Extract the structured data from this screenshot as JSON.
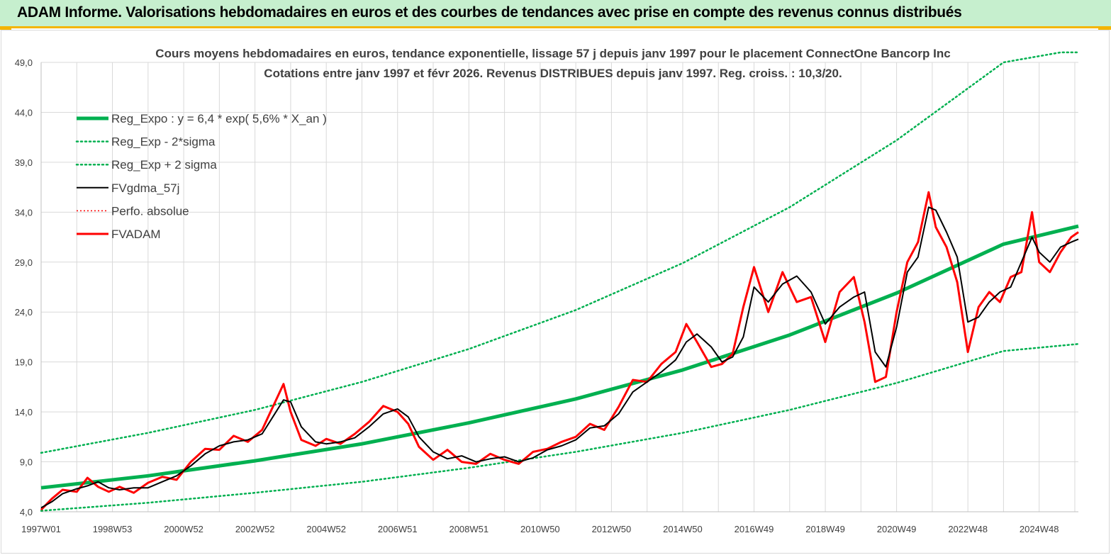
{
  "header": {
    "title": "ADAM Informe. Valorisations hebdomadaires en euros et des courbes de tendances avec prise en compte des revenus connus distribués"
  },
  "colors": {
    "header_bg": "#c6efce",
    "header_accent": "#f4b400",
    "reg_expo": "#00b050",
    "fvgdma": "#000000",
    "fvadam": "#ff0000",
    "perfo": "#ff0000",
    "grid": "#d9d9d9"
  },
  "chart_data": {
    "type": "line",
    "title_line1": "Cours moyens hebdomadaires en euros, tendance exponentielle, lissage 57 j depuis janv 1997  pour le placement ConnectOne Bancorp Inc",
    "title_line2": "Cotations entre janv 1997 et févr  2026. Revenus DISTRIBUES depuis janv 1997. Reg. croiss. : 10,3/20.",
    "xlabel": "",
    "ylabel": "",
    "ylim": [
      4.0,
      49.0
    ],
    "xlim": [
      1997.0,
      2026.1
    ],
    "y_ticks": [
      "4,0",
      "9,0",
      "14,0",
      "19,0",
      "24,0",
      "29,0",
      "34,0",
      "39,0",
      "44,0",
      "49,0"
    ],
    "x_ticks": [
      {
        "label": "1997W01",
        "x": 1997.0
      },
      {
        "label": "1998W53",
        "x": 1999.0
      },
      {
        "label": "2000W52",
        "x": 2001.0
      },
      {
        "label": "2002W52",
        "x": 2003.0
      },
      {
        "label": "2004W52",
        "x": 2005.0
      },
      {
        "label": "2006W51",
        "x": 2007.0
      },
      {
        "label": "2008W51",
        "x": 2009.0
      },
      {
        "label": "2010W50",
        "x": 2011.0
      },
      {
        "label": "2012W50",
        "x": 2013.0
      },
      {
        "label": "2014W50",
        "x": 2015.0
      },
      {
        "label": "2016W49",
        "x": 2017.0
      },
      {
        "label": "2018W49",
        "x": 2019.0
      },
      {
        "label": "2020W49",
        "x": 2021.0
      },
      {
        "label": "2022W48",
        "x": 2023.0
      },
      {
        "label": "2024W48",
        "x": 2025.0
      }
    ],
    "grid": true,
    "legend_position": "top-left",
    "legend": [
      {
        "label": "Reg_Expo : y = 6,4 * exp( 5,6% *  X_an )",
        "style": "solid-thick",
        "color": "#00b050"
      },
      {
        "label": "Reg_Exp - 2*sigma",
        "style": "dotted",
        "color": "#00b050"
      },
      {
        "label": "Reg_Exp + 2 sigma",
        "style": "dotted",
        "color": "#00b050"
      },
      {
        "label": "FVgdma_57j",
        "style": "solid",
        "color": "#000000"
      },
      {
        "label": "Perfo. absolue",
        "style": "dotted-thin",
        "color": "#ff0000"
      },
      {
        "label": "FVADAM",
        "style": "solid",
        "color": "#ff0000"
      }
    ],
    "series": [
      {
        "name": "Reg_Expo : y = 6,4 * exp( 5,6% *  X_an )",
        "x": [
          1997.0,
          2000.0,
          2003.0,
          2006.0,
          2009.0,
          2012.0,
          2015.0,
          2018.0,
          2021.0,
          2024.0,
          2026.1
        ],
        "values": [
          6.4,
          7.6,
          9.1,
          10.8,
          12.9,
          15.3,
          18.2,
          21.7,
          25.9,
          30.8,
          32.6
        ]
      },
      {
        "name": "Reg_Exp - 2*sigma",
        "x": [
          1997.0,
          2000.0,
          2003.0,
          2006.0,
          2009.0,
          2012.0,
          2015.0,
          2018.0,
          2021.0,
          2024.0,
          2026.1
        ],
        "values": [
          4.1,
          4.9,
          5.9,
          7.0,
          8.4,
          10.0,
          11.9,
          14.2,
          16.9,
          20.1,
          20.8
        ]
      },
      {
        "name": "Reg_Exp + 2 sigma",
        "x": [
          1997.0,
          2000.0,
          2003.0,
          2006.0,
          2009.0,
          2012.0,
          2015.0,
          2018.0,
          2021.0,
          2024.0,
          2025.6,
          2026.1
        ],
        "values": [
          9.9,
          11.9,
          14.2,
          17.0,
          20.3,
          24.2,
          28.9,
          34.5,
          41.2,
          49.0,
          50.0,
          50.0
        ]
      },
      {
        "name": "FVgdma_57j",
        "x": [
          1997.0,
          1997.3,
          1997.6,
          1998.0,
          1998.3,
          1998.6,
          1998.9,
          1999.2,
          1999.6,
          2000.0,
          2000.4,
          2000.8,
          2001.2,
          2001.6,
          2002.0,
          2002.4,
          2002.8,
          2003.2,
          2003.5,
          2003.8,
          2004.0,
          2004.3,
          2004.7,
          2005.0,
          2005.4,
          2005.8,
          2006.2,
          2006.6,
          2007.0,
          2007.3,
          2007.6,
          2008.0,
          2008.4,
          2008.8,
          2009.2,
          2009.6,
          2010.0,
          2010.4,
          2010.8,
          2011.2,
          2011.6,
          2012.0,
          2012.4,
          2012.8,
          2013.2,
          2013.6,
          2014.0,
          2014.4,
          2014.8,
          2015.1,
          2015.4,
          2015.8,
          2016.1,
          2016.4,
          2016.7,
          2017.0,
          2017.4,
          2017.8,
          2018.2,
          2018.6,
          2019.0,
          2019.4,
          2019.8,
          2020.1,
          2020.4,
          2020.7,
          2021.0,
          2021.3,
          2021.6,
          2021.9,
          2022.1,
          2022.4,
          2022.7,
          2023.0,
          2023.3,
          2023.6,
          2023.9,
          2024.2,
          2024.5,
          2024.8,
          2025.0,
          2025.3,
          2025.6,
          2025.9,
          2026.1
        ],
        "values": [
          4.4,
          5.0,
          5.8,
          6.3,
          6.6,
          7.0,
          6.4,
          6.2,
          6.4,
          6.4,
          7.0,
          7.6,
          8.6,
          9.8,
          10.6,
          11.0,
          11.2,
          11.8,
          13.5,
          15.2,
          15.0,
          12.5,
          11.0,
          10.8,
          11.0,
          11.4,
          12.5,
          13.8,
          14.3,
          13.5,
          11.5,
          10.0,
          9.3,
          9.6,
          9.0,
          9.3,
          9.5,
          9.0,
          9.4,
          10.2,
          10.6,
          11.2,
          12.4,
          12.6,
          13.8,
          16.0,
          17.0,
          18.0,
          19.2,
          21.0,
          21.8,
          20.5,
          19.0,
          19.5,
          21.5,
          26.5,
          25.0,
          26.8,
          27.6,
          26.0,
          22.8,
          24.5,
          25.5,
          26.0,
          20.0,
          18.5,
          22.5,
          28.0,
          29.5,
          34.5,
          34.2,
          32.0,
          29.5,
          23.0,
          23.5,
          25.0,
          26.0,
          26.5,
          29.0,
          31.5,
          30.0,
          29.0,
          30.5,
          31.0,
          31.3
        ]
      },
      {
        "name": "FVADAM",
        "x": [
          1997.0,
          1997.3,
          1997.6,
          1998.0,
          1998.3,
          1998.6,
          1998.9,
          1999.2,
          1999.6,
          2000.0,
          2000.4,
          2000.8,
          2001.2,
          2001.6,
          2002.0,
          2002.4,
          2002.8,
          2003.2,
          2003.5,
          2003.8,
          2004.0,
          2004.3,
          2004.7,
          2005.0,
          2005.4,
          2005.8,
          2006.2,
          2006.6,
          2007.0,
          2007.3,
          2007.6,
          2008.0,
          2008.4,
          2008.8,
          2009.2,
          2009.6,
          2010.0,
          2010.4,
          2010.8,
          2011.2,
          2011.6,
          2012.0,
          2012.4,
          2012.8,
          2013.2,
          2013.6,
          2014.0,
          2014.4,
          2014.8,
          2015.1,
          2015.4,
          2015.8,
          2016.1,
          2016.4,
          2016.7,
          2017.0,
          2017.4,
          2017.8,
          2018.2,
          2018.6,
          2019.0,
          2019.4,
          2019.8,
          2020.1,
          2020.4,
          2020.7,
          2021.0,
          2021.3,
          2021.6,
          2021.9,
          2022.1,
          2022.4,
          2022.7,
          2023.0,
          2023.3,
          2023.6,
          2023.9,
          2024.2,
          2024.5,
          2024.8,
          2025.0,
          2025.3,
          2025.6,
          2025.9,
          2026.1
        ],
        "values": [
          4.2,
          5.3,
          6.2,
          6.0,
          7.4,
          6.5,
          6.0,
          6.5,
          5.9,
          6.9,
          7.5,
          7.2,
          9.0,
          10.3,
          10.2,
          11.6,
          11.0,
          12.2,
          14.5,
          16.8,
          14.0,
          11.2,
          10.6,
          11.3,
          10.8,
          11.8,
          13.0,
          14.6,
          14.0,
          12.8,
          10.5,
          9.2,
          10.2,
          9.0,
          8.8,
          9.8,
          9.2,
          8.8,
          10.0,
          10.3,
          11.0,
          11.5,
          12.8,
          12.2,
          14.5,
          17.2,
          17.0,
          18.8,
          20.0,
          22.8,
          21.0,
          18.5,
          18.8,
          19.8,
          24.5,
          28.5,
          24.0,
          28.0,
          25.0,
          25.5,
          21.0,
          26.0,
          27.5,
          23.0,
          17.0,
          17.5,
          24.0,
          29.0,
          31.0,
          36.0,
          32.5,
          30.5,
          27.0,
          20.0,
          24.5,
          26.0,
          25.0,
          27.5,
          28.0,
          34.0,
          29.0,
          28.0,
          30.0,
          31.5,
          32.0
        ]
      }
    ]
  }
}
